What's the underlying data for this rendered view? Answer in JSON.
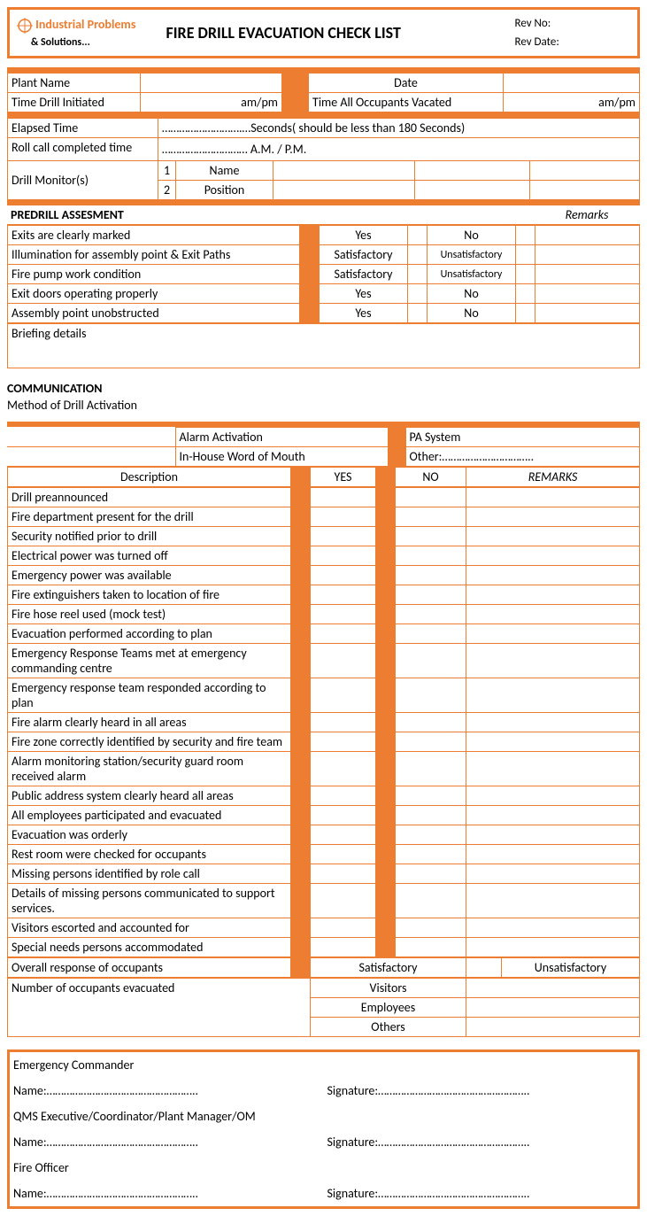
{
  "colors": {
    "accent": "#ed7d31",
    "border": "#ed7d31",
    "bg": "#ffffff",
    "text": "#000000"
  },
  "header": {
    "logo_line1": "Industrial Problems",
    "logo_line2": "& Solutions...",
    "title": "FIRE DRILL EVACUATION CHECK LIST",
    "rev_no_label": "Rev No:",
    "rev_date_label": "Rev Date:"
  },
  "info": {
    "plant_name_label": "Plant Name",
    "date_label": "Date",
    "time_initiated_label": "Time Drill Initiated",
    "ampm1": "am/pm",
    "time_vacated_label": "Time All Occupants Vacated",
    "ampm2": "am/pm",
    "elapsed_label": "Elapsed Time",
    "elapsed_text": "……………………….…Seconds( should be less than 180 Seconds)",
    "rollcall_label": "Roll call completed time",
    "rollcall_text": "………………………… A.M. / P.M.",
    "drill_monitor_label": "Drill Monitor(s)",
    "one": "1",
    "two": "2",
    "name_label": "Name",
    "position_label": "Position"
  },
  "predrill": {
    "title": "PREDRILL ASSESMENT",
    "remarks_label": "Remarks",
    "rows": [
      {
        "label": "Exits are clearly marked",
        "opt1": "Yes",
        "opt2": "No"
      },
      {
        "label": "Illumination for assembly point & Exit Paths",
        "opt1": "Satisfactory",
        "opt2": "Unsatisfactory"
      },
      {
        "label": "Fire pump work condition",
        "opt1": "Satisfactory",
        "opt2": "Unsatisfactory"
      },
      {
        "label": "Exit doors operating properly",
        "opt1": "Yes",
        "opt2": "No"
      },
      {
        "label": "Assembly point unobstructed",
        "opt1": "Yes",
        "opt2": "No"
      }
    ],
    "briefing_label": "Briefing details"
  },
  "comm": {
    "title": "COMMUNICATION",
    "subtitle": "Method of Drill Activation",
    "m1": "Alarm Activation",
    "m2": "PA System",
    "m3": "In-House Word of Mouth",
    "m4": "Other:…………………………..",
    "col_desc": "Description",
    "col_yes": "YES",
    "col_no": "NO",
    "col_remarks": "REMARKS",
    "items": [
      "Drill preannounced",
      "Fire department present for the drill",
      "Security notified prior to drill",
      "Electrical power was turned off",
      "Emergency power was available",
      "Fire extinguishers taken to location of fire",
      "Fire hose reel used (mock test)",
      "Evacuation performed according to plan",
      "Emergency Response Teams met at emergency commanding centre",
      "Emergency response team responded according to plan",
      "Fire alarm clearly heard in all areas",
      "Fire zone correctly identified by security and fire team",
      "Alarm monitoring station/security guard room received alarm",
      "Public address system clearly heard all areas",
      "All employees participated and evacuated",
      "Evacuation was orderly",
      "Rest room were checked for occupants",
      "Missing persons identified by role call",
      "Details of missing persons communicated to support services.",
      "Visitors escorted and accounted for",
      "Special needs persons accommodated"
    ],
    "overall_label": "Overall response of occupants",
    "overall_opt1": "Satisfactory",
    "overall_opt2": "Unsatisfactory",
    "evac_label": "Number of occupants evacuated",
    "evac_rows": [
      "Visitors",
      "Employees",
      "Others"
    ]
  },
  "sign": {
    "role1": "Emergency Commander",
    "role2": "QMS Executive/Coordinator/Plant Manager/OM",
    "role3": "Fire Officer",
    "name_label": "Name:……………………………………………..",
    "sig_label": "Signature:…………………………………………….."
  }
}
